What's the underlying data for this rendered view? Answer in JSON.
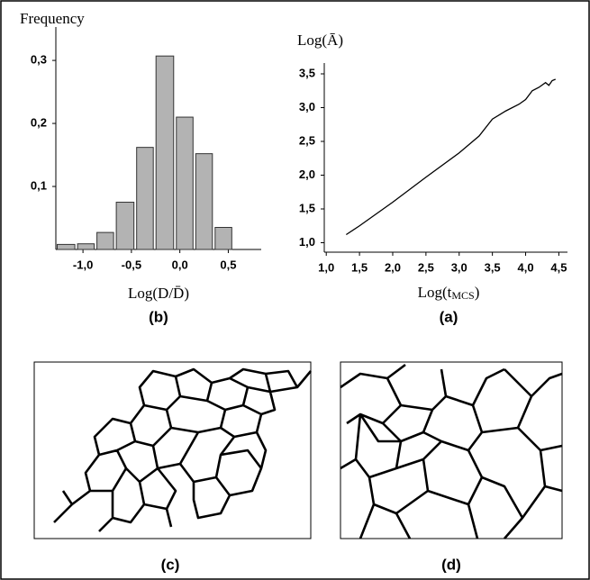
{
  "chart_data": [
    {
      "type": "histogram",
      "y_label": "Frequency",
      "x_label": "Log(D/D̄)",
      "panel_label": "(b)",
      "bins": [
        -1.28,
        -1.07,
        -0.87,
        -0.67,
        -0.46,
        -0.26,
        -0.05,
        0.15,
        0.35,
        0.55
      ],
      "values": [
        0.008,
        0.009,
        0.027,
        0.075,
        0.162,
        0.307,
        0.21,
        0.152,
        0.035
      ],
      "color": "#b3b3b3",
      "xlim": [
        -1.28,
        0.84
      ],
      "ylim": [
        0,
        0.353
      ],
      "xticks": [
        {
          "value": -1.0,
          "label": "-1,0"
        },
        {
          "value": -0.5,
          "label": "-0,5"
        },
        {
          "value": 0.0,
          "label": "0,0"
        },
        {
          "value": 0.5,
          "label": "0,5"
        }
      ],
      "yticks": [
        {
          "value": 0.1,
          "label": "0,1"
        },
        {
          "value": 0.2,
          "label": "0,2"
        },
        {
          "value": 0.3,
          "label": "0,3"
        }
      ]
    },
    {
      "type": "line",
      "y_label": "Log(Ā)",
      "x_label_parts": [
        "Log(t",
        "MCS",
        ")"
      ],
      "panel_label": "(a)",
      "x": [
        1.3,
        1.5,
        2.0,
        2.5,
        3.0,
        3.3,
        3.5,
        3.7,
        3.9,
        4.0,
        4.1,
        4.2,
        4.3,
        4.35,
        4.4,
        4.45
      ],
      "values": [
        1.12,
        1.25,
        1.6,
        1.97,
        2.33,
        2.58,
        2.83,
        2.95,
        3.05,
        3.12,
        3.25,
        3.3,
        3.37,
        3.33,
        3.4,
        3.42
      ],
      "color": "#000000",
      "xlim": [
        0.97,
        4.63
      ],
      "ylim": [
        0.86,
        3.66
      ],
      "xticks": [
        {
          "value": 1.0,
          "label": "1,0"
        },
        {
          "value": 1.5,
          "label": "1,5"
        },
        {
          "value": 2.0,
          "label": "2,0"
        },
        {
          "value": 2.5,
          "label": "2,5"
        },
        {
          "value": 3.0,
          "label": "3,0"
        },
        {
          "value": 3.5,
          "label": "3,5"
        },
        {
          "value": 4.0,
          "label": "4,0"
        },
        {
          "value": 4.5,
          "label": "4,5"
        }
      ],
      "yticks": [
        {
          "value": 1.0,
          "label": "1,0"
        },
        {
          "value": 1.5,
          "label": "1,5"
        },
        {
          "value": 2.0,
          "label": "2,0"
        },
        {
          "value": 2.5,
          "label": "2,5"
        },
        {
          "value": 3.0,
          "label": "3,0"
        },
        {
          "value": 3.5,
          "label": "3,5"
        }
      ]
    }
  ],
  "panels": [
    {
      "label": "(c)"
    },
    {
      "label": "(d)"
    }
  ]
}
